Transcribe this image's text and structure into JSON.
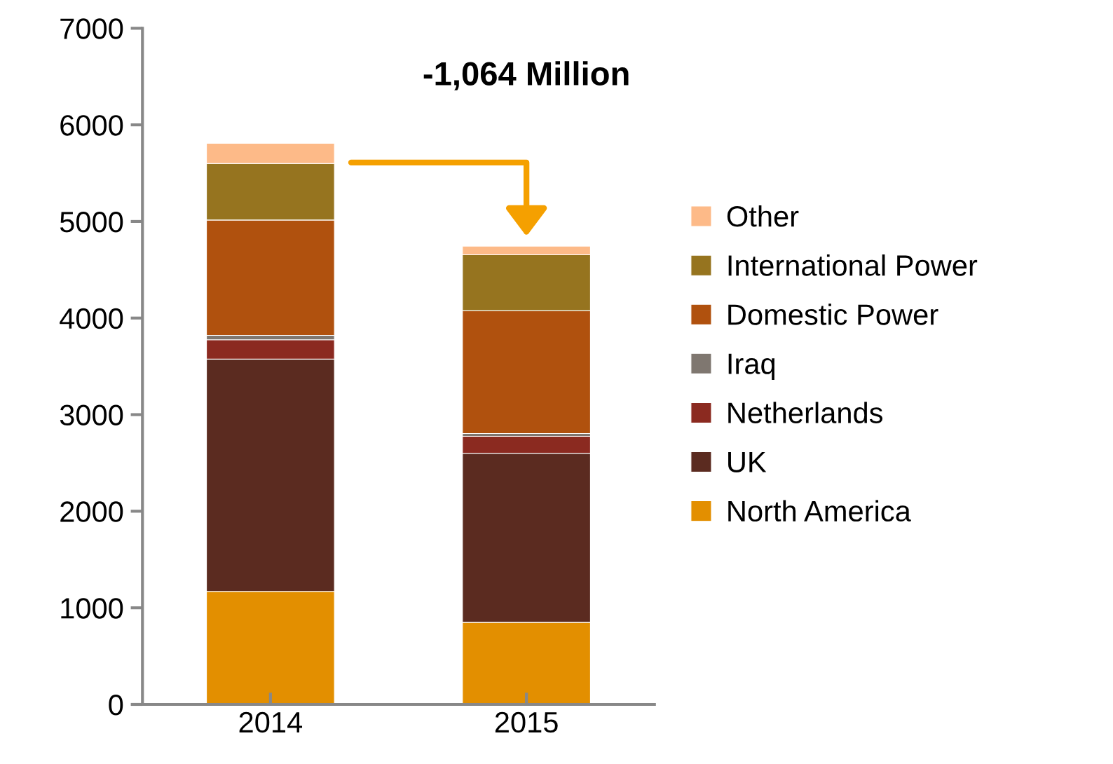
{
  "chart_data": {
    "type": "bar",
    "stacked": true,
    "categories": [
      "2014",
      "2015"
    ],
    "series": [
      {
        "name": "North America",
        "color": "#e38f00",
        "values": [
          1170,
          850
        ]
      },
      {
        "name": "UK",
        "color": "#5b2b20",
        "values": [
          2405,
          1750
        ]
      },
      {
        "name": "Netherlands",
        "color": "#8b2a20",
        "values": [
          200,
          175
        ]
      },
      {
        "name": "Iraq",
        "color": "#7f7770",
        "values": [
          45,
          30
        ]
      },
      {
        "name": "Domestic Power",
        "color": "#b0510e",
        "values": [
          1195,
          1270
        ]
      },
      {
        "name": "International Power",
        "color": "#96741f",
        "values": [
          585,
          580
        ]
      },
      {
        "name": "Other",
        "color": "#fdba88",
        "values": [
          210,
          90
        ]
      }
    ],
    "ylim": [
      0,
      7000
    ],
    "yticks": [
      0,
      1000,
      2000,
      3000,
      4000,
      5000,
      6000,
      7000
    ],
    "grid": false,
    "legend": "right",
    "annotations": [
      "-1,064 Million"
    ]
  }
}
